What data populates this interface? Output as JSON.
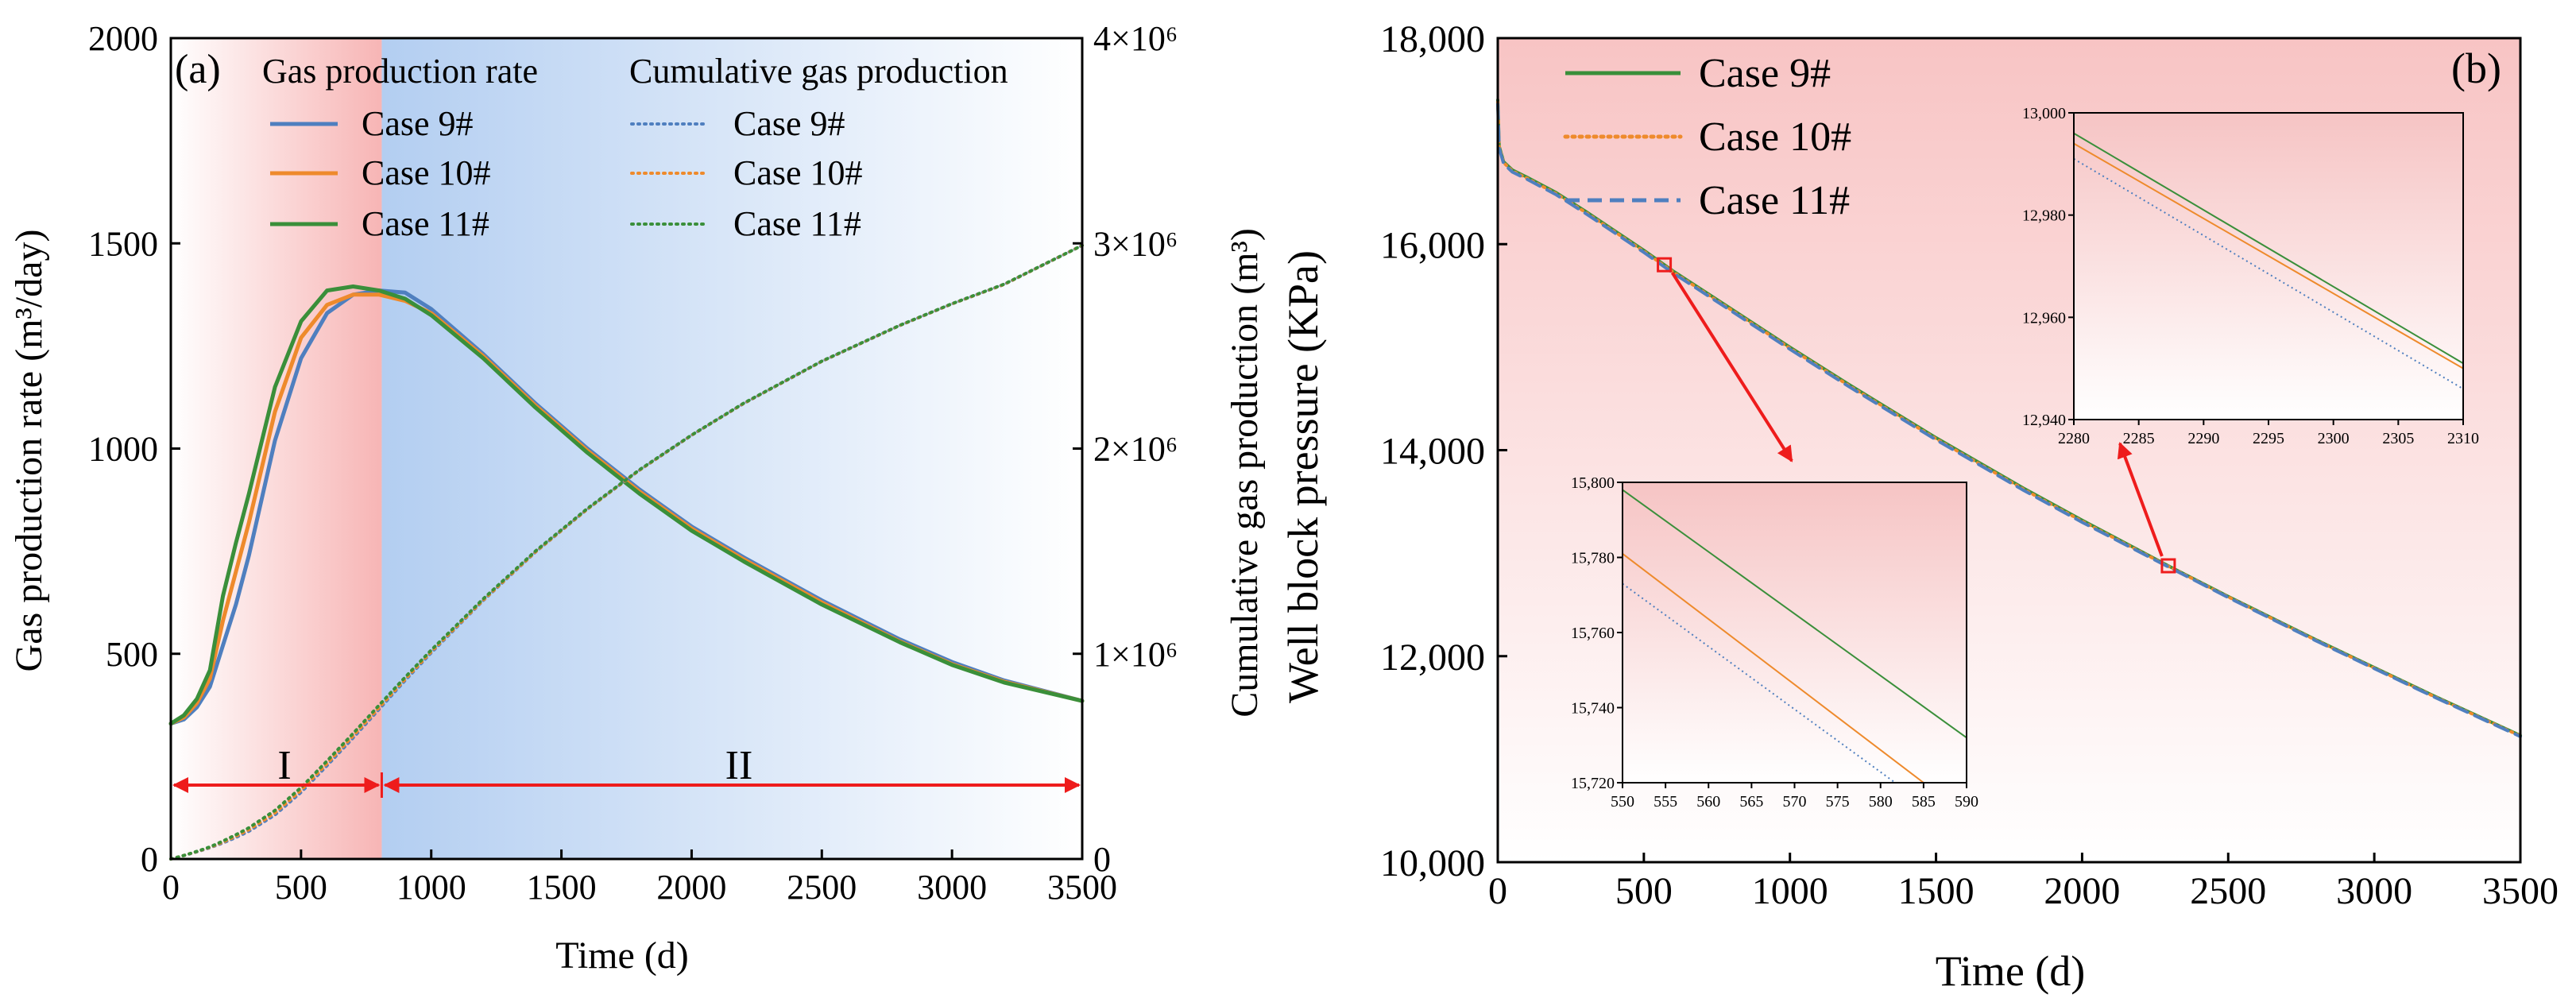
{
  "chart_data": [
    {
      "panel_label": "(a)",
      "type": "line",
      "xlabel": "Time (d)",
      "ylabel": "Gas production rate (m³/day)",
      "ylabel_right": "Cumulative gas production (m³)",
      "xlim": [
        0,
        3500
      ],
      "ylim": [
        0,
        2000
      ],
      "ylim_right": [
        0,
        4000000
      ],
      "xticks": [
        0,
        500,
        1000,
        1500,
        2000,
        2500,
        3000,
        3500
      ],
      "xtick_labels": [
        "0",
        "500",
        "1000",
        "1500",
        "2000",
        "2500",
        "3000",
        "3500"
      ],
      "yticks": [
        0,
        500,
        1000,
        1500,
        2000
      ],
      "ytick_labels": [
        "0",
        "500",
        "1000",
        "1500",
        "2000"
      ],
      "yticks_right": [
        0,
        1000000,
        2000000,
        3000000,
        4000000
      ],
      "ytick_labels_right": [
        "0",
        "1×10⁶",
        "2×10⁶",
        "3×10⁶",
        "4×10⁶"
      ],
      "legend_titles": [
        "Gas production rate",
        "Cumulative gas production"
      ],
      "legend_placement": "top",
      "stage_boundary_x": 810,
      "regions": [
        {
          "label": "I",
          "x_from": 0,
          "x_to": 810,
          "color": "#f7b8b8"
        },
        {
          "label": "II",
          "x_from": 810,
          "x_to": 3500,
          "color": "#b8d2f2"
        }
      ],
      "arrow_color": "#ee1c1c",
      "x": [
        0,
        50,
        100,
        150,
        200,
        250,
        300,
        400,
        500,
        600,
        700,
        800,
        900,
        1000,
        1200,
        1400,
        1600,
        1800,
        2000,
        2200,
        2500,
        2800,
        3000,
        3200,
        3500
      ],
      "series": [
        {
          "name": "Case 9#",
          "group": "rate",
          "axis": "left",
          "style": "solid",
          "color": "#4f7fbf",
          "values": [
            330,
            340,
            370,
            420,
            520,
            620,
            740,
            1020,
            1220,
            1330,
            1375,
            1385,
            1380,
            1340,
            1230,
            1110,
            1000,
            900,
            810,
            735,
            630,
            535,
            480,
            435,
            385
          ]
        },
        {
          "name": "Case 10#",
          "group": "rate",
          "axis": "left",
          "style": "solid",
          "color": "#ee8a2c",
          "values": [
            330,
            345,
            380,
            440,
            580,
            700,
            820,
            1090,
            1270,
            1350,
            1375,
            1375,
            1360,
            1330,
            1225,
            1105,
            995,
            895,
            805,
            730,
            625,
            530,
            475,
            432,
            385
          ]
        },
        {
          "name": "Case 11#",
          "group": "rate",
          "axis": "left",
          "style": "solid",
          "color": "#3a8f3a",
          "values": [
            330,
            350,
            390,
            460,
            640,
            770,
            890,
            1150,
            1310,
            1385,
            1395,
            1385,
            1365,
            1325,
            1220,
            1100,
            990,
            890,
            800,
            725,
            620,
            528,
            473,
            430,
            385
          ]
        },
        {
          "name": "Case 9#",
          "group": "cumulative",
          "axis": "right",
          "style": "dotted",
          "color": "#4f7fbf",
          "values": [
            0,
            17000,
            35000,
            55000,
            78000,
            105000,
            135000,
            215000,
            325000,
            455000,
            590000,
            730000,
            870000,
            1005000,
            1260000,
            1495000,
            1705000,
            1895000,
            2065000,
            2220000,
            2425000,
            2600000,
            2705000,
            2800000,
            2990000
          ]
        },
        {
          "name": "Case 10#",
          "group": "cumulative",
          "axis": "right",
          "style": "dotted",
          "color": "#ee8a2c",
          "values": [
            0,
            17000,
            36000,
            57000,
            82000,
            111000,
            143000,
            225000,
            335000,
            465000,
            600000,
            738000,
            876000,
            1010000,
            1262000,
            1496000,
            1705000,
            1895000,
            2065000,
            2220000,
            2425000,
            2600000,
            2705000,
            2800000,
            2990000
          ]
        },
        {
          "name": "Case 11#",
          "group": "cumulative",
          "axis": "right",
          "style": "dotted",
          "color": "#3a8f3a",
          "values": [
            0,
            17000,
            37000,
            59000,
            87000,
            118000,
            152000,
            237000,
            348000,
            478000,
            612000,
            750000,
            886000,
            1018000,
            1268000,
            1500000,
            1708000,
            1897000,
            2066000,
            2221000,
            2426000,
            2601000,
            2706000,
            2801000,
            2990000
          ]
        }
      ]
    },
    {
      "panel_label": "(b)",
      "type": "line",
      "xlabel": "Time (d)",
      "ylabel": "Well block pressure (KPa)",
      "xlim": [
        0,
        3500
      ],
      "ylim": [
        10000,
        18000
      ],
      "xticks": [
        0,
        500,
        1000,
        1500,
        2000,
        2500,
        3000,
        3500
      ],
      "xtick_labels": [
        "0",
        "500",
        "1000",
        "1500",
        "2000",
        "2500",
        "3000",
        "3500"
      ],
      "yticks": [
        10000,
        12000,
        14000,
        16000,
        18000
      ],
      "ytick_labels": [
        "10,000",
        "12,000",
        "14,000",
        "16,000",
        "18,000"
      ],
      "legend_placement": "top-left",
      "background": "pink gradient fading downward",
      "x": [
        0,
        5,
        20,
        50,
        100,
        200,
        300,
        400,
        500,
        600,
        800,
        1000,
        1200,
        1500,
        1800,
        2000,
        2300,
        2500,
        2800,
        3000,
        3200,
        3500
      ],
      "series": [
        {
          "name": "Case 9#",
          "style": "solid",
          "color": "#3a8f3a",
          "values": [
            17400,
            16950,
            16800,
            16720,
            16650,
            16500,
            16320,
            16130,
            15940,
            15740,
            15370,
            15000,
            14640,
            14120,
            13630,
            13320,
            12870,
            12580,
            12160,
            11890,
            11620,
            11230
          ]
        },
        {
          "name": "Case 10#",
          "style": "dotted",
          "color": "#ee8a2c",
          "values": [
            17380,
            16940,
            16790,
            16710,
            16640,
            16490,
            16310,
            16120,
            15930,
            15730,
            15360,
            14990,
            14630,
            14110,
            13620,
            13310,
            12865,
            12575,
            12155,
            11885,
            11615,
            11225
          ]
        },
        {
          "name": "Case 11#",
          "style": "dashed",
          "color": "#4f7fbf",
          "values": [
            17360,
            16930,
            16780,
            16700,
            16630,
            16480,
            16300,
            16110,
            15920,
            15720,
            15350,
            14980,
            14620,
            14100,
            13610,
            13300,
            12860,
            12570,
            12150,
            11880,
            11610,
            11220
          ]
        }
      ],
      "insets": [
        {
          "marker_x": 570,
          "xlim": [
            550,
            590
          ],
          "ylim": [
            15720,
            15800
          ],
          "xticks": [
            550,
            555,
            560,
            565,
            570,
            575,
            580,
            585,
            590
          ],
          "xtick_labels": [
            "550",
            "555",
            "560",
            "565",
            "570",
            "575",
            "580",
            "585",
            "590"
          ],
          "yticks": [
            15720,
            15740,
            15760,
            15780,
            15800
          ],
          "ytick_labels": [
            "15,720",
            "15,740",
            "15,760",
            "15,780",
            "15,800"
          ],
          "lines": [
            {
              "name": "Case 9#",
              "style": "solid",
              "color": "#3a8f3a",
              "x": [
                550,
                590
              ],
              "y": [
                15798,
                15732
              ]
            },
            {
              "name": "Case 10#",
              "style": "solid",
              "color": "#ee8a2c",
              "x": [
                550,
                585
              ],
              "y": [
                15781,
                15720
              ]
            },
            {
              "name": "Case 11#",
              "style": "dotted",
              "color": "#4f7fbf",
              "x": [
                550,
                581.7
              ],
              "y": [
                15773,
                15720
              ]
            }
          ]
        },
        {
          "marker_x": 2295,
          "xlim": [
            2280,
            2310
          ],
          "ylim": [
            12940,
            13000
          ],
          "xticks": [
            2280,
            2285,
            2290,
            2295,
            2300,
            2305,
            2310
          ],
          "xtick_labels": [
            "2280",
            "2285",
            "2290",
            "2295",
            "2300",
            "2305",
            "2310"
          ],
          "yticks": [
            12940,
            12960,
            12980,
            13000
          ],
          "ytick_labels": [
            "12,940",
            "12,960",
            "12,980",
            "13,000"
          ],
          "lines": [
            {
              "name": "Case 9#",
              "style": "solid",
              "color": "#3a8f3a",
              "x": [
                2280,
                2310
              ],
              "y": [
                12996,
                12951
              ]
            },
            {
              "name": "Case 10#",
              "style": "solid",
              "color": "#ee8a2c",
              "x": [
                2280,
                2310
              ],
              "y": [
                12994,
                12950
              ]
            },
            {
              "name": "Case 11#",
              "style": "dotted",
              "color": "#4f7fbf",
              "x": [
                2280,
                2310
              ],
              "y": [
                12991,
                12946
              ]
            }
          ]
        }
      ]
    }
  ]
}
